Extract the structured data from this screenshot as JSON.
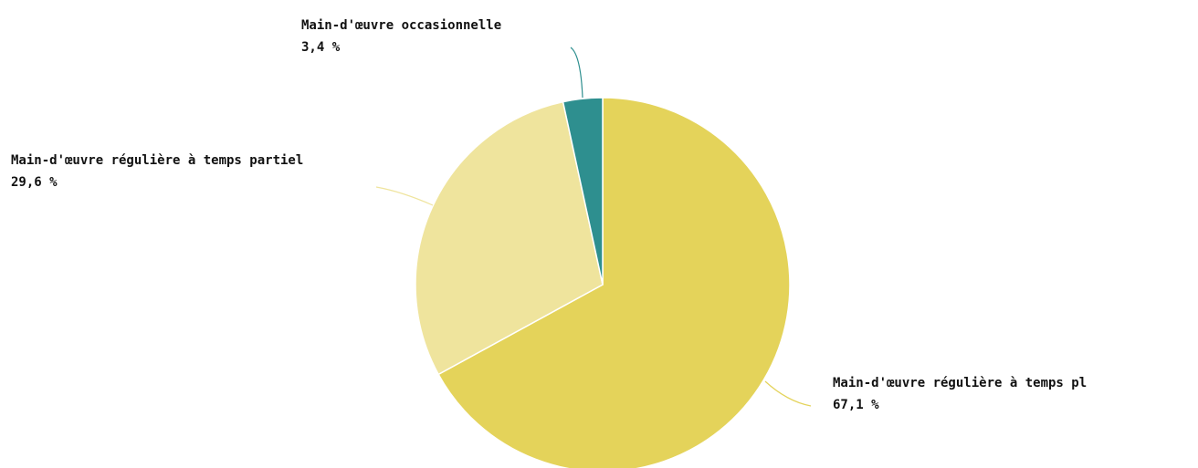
{
  "chart_data": {
    "type": "pie",
    "categories": [
      "Main-d'œuvre régulière à temps pl",
      "Main-d'œuvre régulière à temps partiel",
      "Main-d'œuvre occasionnelle"
    ],
    "values": [
      67.1,
      29.6,
      3.4
    ],
    "value_labels": [
      "67,1 %",
      "29,6 %",
      "3,4 %"
    ],
    "colors": [
      "#e4d35a",
      "#efe49d",
      "#2e8f8f"
    ]
  }
}
